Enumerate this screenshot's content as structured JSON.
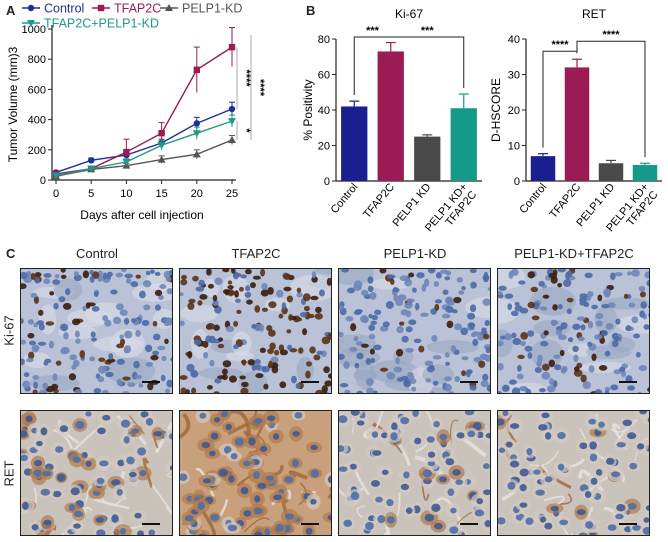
{
  "panels": {
    "a": {
      "letter": "A"
    },
    "b": {
      "letter": "B"
    },
    "c": {
      "letter": "C"
    }
  },
  "colors": {
    "control": "#1f2f9c",
    "tfap2c": "#9b1b54",
    "pelp1kd": "#555555",
    "combo": "#1d9a8c",
    "bar_control": "#1a1f8f",
    "bar_tfap2c": "#9b1b54",
    "bar_pelp1kd": "#4a4a4a",
    "bar_combo": "#159a8a"
  },
  "chart_data": [
    {
      "type": "line",
      "title": "",
      "xlabel": "Days after cell injection",
      "ylabel": "Tumor Volume (mm)3",
      "x": [
        0,
        5,
        10,
        15,
        20,
        25
      ],
      "xlim": [
        0,
        25
      ],
      "ylim": [
        0,
        1000
      ],
      "yticks": [
        0,
        200,
        400,
        600,
        800,
        1000
      ],
      "legend": [
        "Control",
        "TFAP2C",
        "PELP1-KD",
        "TFAP2C+PELP1-KD"
      ],
      "series": [
        {
          "name": "Control",
          "values": [
            50,
            130,
            165,
            245,
            375,
            470
          ],
          "err": [
            10,
            15,
            20,
            25,
            40,
            45
          ]
        },
        {
          "name": "TFAP2C",
          "values": [
            40,
            75,
            185,
            310,
            730,
            880
          ],
          "err": [
            8,
            15,
            85,
            70,
            150,
            130
          ]
        },
        {
          "name": "PELP1-KD",
          "values": [
            25,
            70,
            95,
            135,
            170,
            265
          ],
          "err": [
            5,
            10,
            15,
            25,
            30,
            30
          ]
        },
        {
          "name": "TFAP2C+PELP1-KD",
          "values": [
            30,
            75,
            120,
            230,
            310,
            390
          ],
          "err": [
            5,
            15,
            20,
            30,
            40,
            40
          ]
        }
      ],
      "significance": [
        "****",
        "****",
        "*"
      ]
    },
    {
      "type": "bar",
      "title": "Ki-67",
      "ylabel": "% Positivity",
      "categories": [
        "Control",
        "TFAP2C",
        "PELP1 KD",
        "PELP1 KD+ TFAP2C"
      ],
      "values": [
        42,
        73,
        25,
        41
      ],
      "err": [
        3,
        5,
        1,
        8
      ],
      "ylim": [
        0,
        80
      ],
      "yticks": [
        0,
        20,
        40,
        60,
        80
      ],
      "significance": [
        "***",
        "***"
      ]
    },
    {
      "type": "bar",
      "title": "RET",
      "ylabel": "D-HSCORE",
      "categories": [
        "Control",
        "TFAP2C",
        "PELP1 KD",
        "PELP1 KD+ TFAP2C"
      ],
      "values": [
        7,
        32,
        5,
        4.5
      ],
      "err": [
        0.7,
        2.3,
        0.8,
        0.5
      ],
      "ylim": [
        0,
        40
      ],
      "yticks": [
        0,
        10,
        20,
        30,
        40
      ],
      "significance": [
        "****",
        "****"
      ]
    }
  ],
  "micrographs": {
    "columns": [
      "Control",
      "TFAP2C",
      "PELP1-KD",
      "PELP1-KD+TFAP2C"
    ],
    "rows": [
      "Ki-67",
      "RET"
    ]
  }
}
